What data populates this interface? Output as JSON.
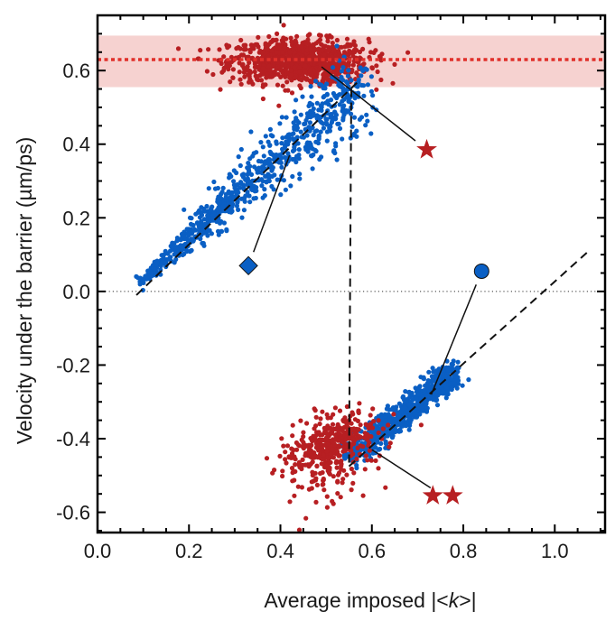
{
  "chart_data": {
    "type": "scatter",
    "title": "",
    "xlabel_parts": [
      "Average imposed |<",
      "k",
      ">|"
    ],
    "xlabel": "Average imposed |<k>|",
    "ylabel": "Velocity under the barrier (µm/ps)",
    "xlim": [
      0.0,
      1.11
    ],
    "ylim": [
      -0.655,
      0.75
    ],
    "xticks": [
      0.0,
      0.2,
      0.4,
      0.6,
      0.8,
      1.0
    ],
    "xtick_labels": [
      "0.0",
      "0.2",
      "0.4",
      "0.6",
      "0.8",
      "1.0"
    ],
    "yticks": [
      -0.6,
      -0.4,
      -0.2,
      0.0,
      0.2,
      0.4,
      0.6
    ],
    "ytick_labels": [
      "-0.6",
      "-0.4",
      "-0.2",
      "0.0",
      "0.2",
      "0.4",
      "0.6"
    ],
    "x_minor_step": 0.05,
    "y_minor_step": 0.05,
    "grid": false,
    "colors": {
      "blue": "#0a5fc4",
      "red": "#b71f22",
      "band": "#f6d2d0",
      "band_line": "#e0302a",
      "black": "#111111"
    },
    "reference_band": {
      "y_center": 0.63,
      "y_low": 0.555,
      "y_high": 0.695
    },
    "zero_line": {
      "y": 0.0,
      "style": "dotted"
    },
    "series": [
      {
        "name": "red upper cluster",
        "color_key": "red",
        "cluster": {
          "x_range": [
            0.26,
            0.62
          ],
          "y_center": 0.625,
          "y_spread": 0.03,
          "count": 900
        }
      },
      {
        "name": "blue rising branch",
        "color_key": "blue",
        "trend": {
          "x_start": 0.09,
          "y_start": 0.02,
          "x_end": 0.57,
          "y_end": 0.56,
          "count": 800
        }
      },
      {
        "name": "blue lower branch",
        "color_key": "blue",
        "trend": {
          "x_start": 0.55,
          "y_start": -0.45,
          "x_end": 0.78,
          "y_end": -0.22,
          "count": 700
        }
      },
      {
        "name": "red lower cluster",
        "color_key": "red",
        "cluster": {
          "x_range": [
            0.4,
            0.62
          ],
          "y_center": -0.41,
          "y_spread": 0.035,
          "count": 450
        }
      }
    ],
    "fit_lines": [
      {
        "name": "fit-rising",
        "x": [
          0.085,
          0.57
        ],
        "y": [
          -0.01,
          0.57
        ],
        "style": "dashed"
      },
      {
        "name": "fit-vertical",
        "x": [
          0.555,
          0.55
        ],
        "y": [
          0.55,
          -0.48
        ],
        "style": "dashed"
      },
      {
        "name": "fit-lower",
        "x": [
          0.55,
          1.07
        ],
        "y": [
          -0.475,
          0.105
        ],
        "style": "dashed"
      }
    ],
    "annotations": [
      {
        "name": "single-star",
        "marker": "star",
        "count": 1,
        "color_key": "red",
        "x": 0.72,
        "y": 0.385,
        "pointer_to": [
          0.49,
          0.61
        ]
      },
      {
        "name": "diamond",
        "marker": "diamond",
        "color_key": "blue",
        "x": 0.33,
        "y": 0.07,
        "pointer_to": [
          0.42,
          0.37
        ]
      },
      {
        "name": "circle",
        "marker": "circle",
        "color_key": "blue",
        "x": 0.84,
        "y": 0.055,
        "pointer_to": [
          0.73,
          -0.28
        ]
      },
      {
        "name": "double-star",
        "marker": "star",
        "count": 2,
        "color_key": "red",
        "x": 0.755,
        "y": -0.555,
        "pointer_to": [
          0.6,
          -0.43
        ]
      }
    ]
  }
}
